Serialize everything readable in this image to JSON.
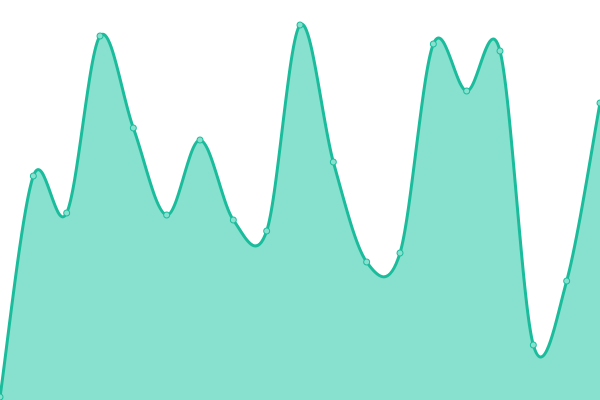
{
  "chart_data": {
    "type": "area",
    "title": "",
    "xlabel": "",
    "ylabel": "",
    "x": [
      0,
      1,
      2,
      3,
      4,
      5,
      6,
      7,
      8,
      9,
      10,
      11,
      12,
      13,
      14,
      15,
      16,
      17,
      18
    ],
    "values": [
      3,
      224,
      187,
      364,
      272,
      185,
      260,
      180,
      169,
      375,
      238,
      138,
      147,
      356,
      309,
      349,
      55,
      119,
      297
    ],
    "ylim": [
      0,
      400
    ],
    "grid": false,
    "axes_visible": false,
    "legend": "none",
    "colors": {
      "line": "#1abc9c",
      "fill": "#88e0cf",
      "marker_fill": "#88e0cf"
    }
  }
}
